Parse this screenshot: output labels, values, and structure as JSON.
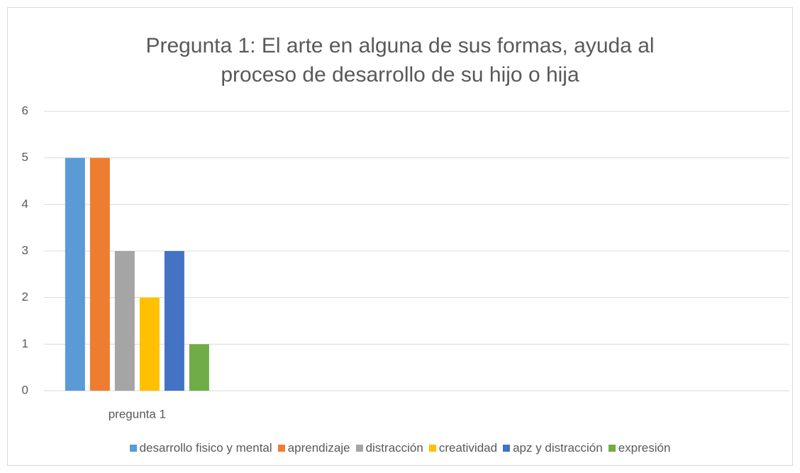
{
  "chart_data": {
    "type": "bar",
    "title": "Pregunta 1: El arte en alguna de sus formas, ayuda al proceso de desarrollo de su hijo o hija",
    "categories": [
      "pregunta 1",
      null,
      null,
      null
    ],
    "series": [
      {
        "name": "desarrollo fisico y mental",
        "color": "#5b9bd5",
        "values": [
          5,
          null,
          null,
          null
        ]
      },
      {
        "name": "aprendizaje",
        "color": "#ed7d31",
        "values": [
          5,
          null,
          null,
          null
        ]
      },
      {
        "name": "distracción",
        "color": "#a5a5a5",
        "values": [
          3,
          null,
          null,
          null
        ]
      },
      {
        "name": "creatividad",
        "color": "#ffc000",
        "values": [
          2,
          null,
          null,
          null
        ]
      },
      {
        "name": "apz y distracción",
        "color": "#4472c4",
        "values": [
          3,
          null,
          null,
          null
        ]
      },
      {
        "name": "expresión",
        "color": "#70ad47",
        "values": [
          1,
          null,
          null,
          null
        ]
      }
    ],
    "ylim": [
      0,
      6
    ],
    "yticks": [
      0,
      1,
      2,
      3,
      4,
      5,
      6
    ],
    "grid": true,
    "legend": "bottom"
  }
}
